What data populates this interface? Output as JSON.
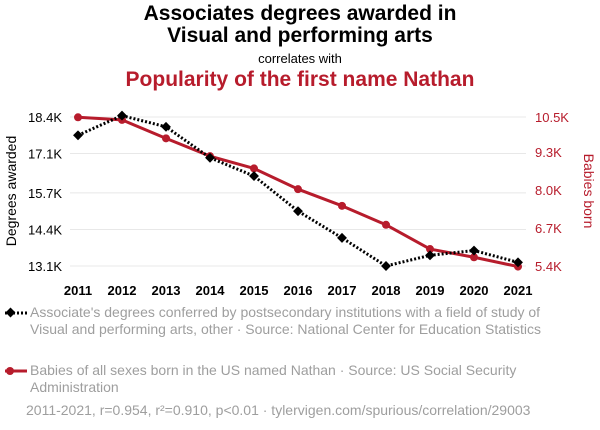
{
  "header": {
    "title_line1": "Associates degrees awarded in",
    "title_line2": "Visual and performing arts",
    "subtitle": "correlates with",
    "title2": "Popularity of the first name Nathan"
  },
  "legend": {
    "series1_text": "Associate's degrees conferred by postsecondary institutions with a field of study of Visual and performing arts, other · Source: National Center for Education Statistics",
    "series2_text": "Babies of all sexes born in the US named Nathan · Source: US Social Security Administration"
  },
  "footer": {
    "text": "2011-2021, r=0.954, r²=0.910, p<0.01 · tylervigen.com/spurious/correlation/29003"
  },
  "colors": {
    "series1": "#000000",
    "series2": "#b71c2c",
    "grid": "#e8e8e8"
  },
  "chart_data": {
    "type": "line",
    "x": [
      2011,
      2012,
      2013,
      2014,
      2015,
      2016,
      2017,
      2018,
      2019,
      2020,
      2021
    ],
    "xlabel": "",
    "grid": true,
    "y_left": {
      "label": "Degrees awarded",
      "ticks": [
        "13.1K",
        "14.4K",
        "15.7K",
        "17.1K",
        "18.4K"
      ],
      "tick_values": [
        13100,
        14400,
        15700,
        17100,
        18400
      ],
      "range": [
        13100,
        18400
      ]
    },
    "y_right": {
      "label": "Babies born",
      "ticks": [
        "5.4K",
        "6.7K",
        "8.0K",
        "9.3K",
        "10.5K"
      ],
      "tick_values": [
        5400,
        6700,
        8000,
        9300,
        10500
      ],
      "range": [
        5400,
        10500
      ]
    },
    "series": [
      {
        "axis": "left",
        "style": "dotted",
        "marker": "diamond",
        "values": [
          17750,
          18450,
          18050,
          16950,
          16300,
          15050,
          14100,
          13100,
          13480,
          13650,
          13230
        ]
      },
      {
        "axis": "right",
        "style": "solid",
        "marker": "circle",
        "values": [
          10490,
          10400,
          9770,
          9160,
          8740,
          8030,
          7460,
          6810,
          5980,
          5700,
          5380
        ]
      }
    ]
  }
}
